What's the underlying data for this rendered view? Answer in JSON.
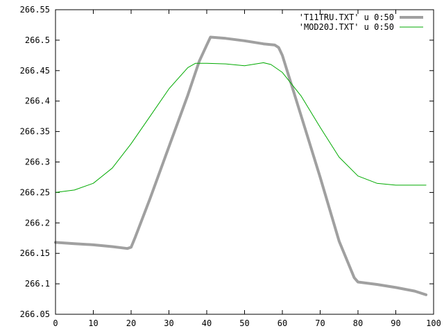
{
  "chart_data": {
    "type": "line",
    "title": "",
    "xlabel": "",
    "ylabel": "",
    "xlim": [
      0,
      100
    ],
    "ylim": [
      266.05,
      266.55
    ],
    "x_ticks": [
      0,
      10,
      20,
      30,
      40,
      50,
      60,
      70,
      80,
      90,
      100
    ],
    "y_ticks": [
      266.05,
      266.1,
      266.15,
      266.2,
      266.25,
      266.3,
      266.35,
      266.4,
      266.45,
      266.5,
      266.55
    ],
    "x_tick_labels": [
      "0",
      "10",
      "20",
      "30",
      "40",
      "50",
      "60",
      "70",
      "80",
      "90",
      "100"
    ],
    "y_tick_labels": [
      "266.05",
      "266.1",
      "266.15",
      "266.2",
      "266.25",
      "266.3",
      "266.35",
      "266.4",
      "266.45",
      "266.5",
      "266.55"
    ],
    "grid": false,
    "legend": "top-right",
    "series": [
      {
        "name": "'T11TRU.TXT' u 0:50",
        "color": "#a0a0a0",
        "x": [
          0,
          5,
          10,
          15,
          19,
          20,
          21,
          25,
          30,
          35,
          38,
          40,
          41,
          45,
          50,
          55,
          58,
          59,
          60,
          65,
          70,
          75,
          79,
          80,
          85,
          90,
          95,
          98
        ],
        "y": [
          266.168,
          266.166,
          266.164,
          266.161,
          266.158,
          266.16,
          266.175,
          266.24,
          266.325,
          266.41,
          266.465,
          266.492,
          266.505,
          266.503,
          266.499,
          266.494,
          266.492,
          266.488,
          266.475,
          266.375,
          266.275,
          266.17,
          266.11,
          266.103,
          266.099,
          266.094,
          266.088,
          266.082
        ]
      },
      {
        "name": "'MOD20J.TXT' u 0:50",
        "color": "#00aa00",
        "x": [
          0,
          5,
          10,
          15,
          20,
          25,
          30,
          35,
          37,
          40,
          45,
          50,
          55,
          57,
          60,
          65,
          70,
          75,
          80,
          85,
          90,
          95,
          98
        ],
        "y": [
          266.25,
          266.254,
          266.265,
          266.29,
          266.33,
          266.375,
          266.42,
          266.455,
          266.462,
          266.462,
          266.461,
          266.458,
          266.463,
          266.46,
          266.447,
          266.408,
          266.357,
          266.308,
          266.277,
          266.265,
          266.262,
          266.262,
          266.262
        ]
      }
    ]
  }
}
